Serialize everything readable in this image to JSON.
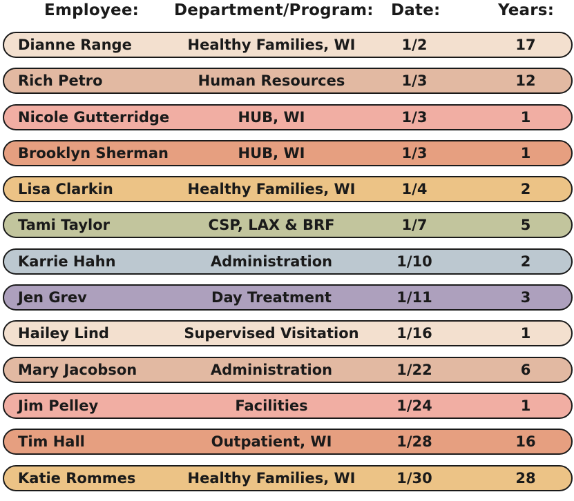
{
  "headers": {
    "employee": "Employee:",
    "department": "Department/Program:",
    "date": "Date:",
    "years": "Years:"
  },
  "row_colors": [
    "#f3e0cf",
    "#e2b9a2",
    "#f1aea3",
    "#e69f80",
    "#ecc386",
    "#c2c59d",
    "#bcc8d0",
    "#ada0bd"
  ],
  "rows": [
    {
      "employee": "Dianne Range",
      "department": "Healthy Families, WI",
      "date": "1/2",
      "years": "17"
    },
    {
      "employee": "Rich Petro",
      "department": "Human Resources",
      "date": "1/3",
      "years": "12"
    },
    {
      "employee": "Nicole Gutterridge",
      "department": "HUB, WI",
      "date": "1/3",
      "years": "1"
    },
    {
      "employee": "Brooklyn Sherman",
      "department": "HUB, WI",
      "date": "1/3",
      "years": "1"
    },
    {
      "employee": "Lisa Clarkin",
      "department": "Healthy Families, WI",
      "date": "1/4",
      "years": "2"
    },
    {
      "employee": "Tami Taylor",
      "department": "CSP, LAX & BRF",
      "date": "1/7",
      "years": "5"
    },
    {
      "employee": "Karrie Hahn",
      "department": "Administration",
      "date": "1/10",
      "years": "2"
    },
    {
      "employee": "Jen Grev",
      "department": "Day Treatment",
      "date": "1/11",
      "years": "3"
    },
    {
      "employee": "Hailey Lind",
      "department": "Supervised Visitation",
      "date": "1/16",
      "years": "1"
    },
    {
      "employee": "Mary Jacobson",
      "department": "Administration",
      "date": "1/22",
      "years": "6"
    },
    {
      "employee": "Jim Pelley",
      "department": "Facilities",
      "date": "1/24",
      "years": "1"
    },
    {
      "employee": "Tim Hall",
      "department": "Outpatient, WI",
      "date": "1/28",
      "years": "16"
    },
    {
      "employee": "Katie Rommes",
      "department": "Healthy Families, WI",
      "date": "1/30",
      "years": "28"
    }
  ]
}
